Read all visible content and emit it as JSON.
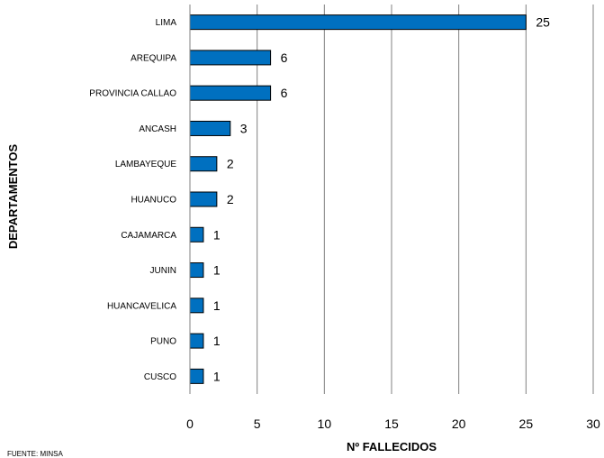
{
  "chart_data": {
    "type": "bar",
    "orientation": "horizontal",
    "categories": [
      "LIMA",
      "AREQUIPA",
      "PROVINCIA CALLAO",
      "ANCASH",
      "LAMBAYEQUE",
      "HUANUCO",
      "CAJAMARCA",
      "JUNIN",
      "HUANCAVELICA",
      "PUNO",
      "CUSCO"
    ],
    "values": [
      25,
      6,
      6,
      3,
      2,
      2,
      1,
      1,
      1,
      1,
      1
    ],
    "data_labels": [
      "25",
      "6",
      "6",
      "3",
      "2",
      "2",
      "1",
      "1",
      "1",
      "1",
      "1"
    ],
    "xlabel": "Nº FALLECIDOS",
    "ylabel": "DEPARTAMENTOS",
    "xlim": [
      0,
      30
    ],
    "xticks": [
      0,
      5,
      10,
      15,
      20,
      25,
      30
    ],
    "xtick_labels": [
      "0",
      "5",
      "10",
      "15",
      "20",
      "25",
      "30"
    ],
    "grid": "vertical",
    "bar_color": "#0070C0",
    "bar_border_color": "#000000",
    "grid_color": "#808080"
  },
  "footnote": "FUENTE: MINSA"
}
